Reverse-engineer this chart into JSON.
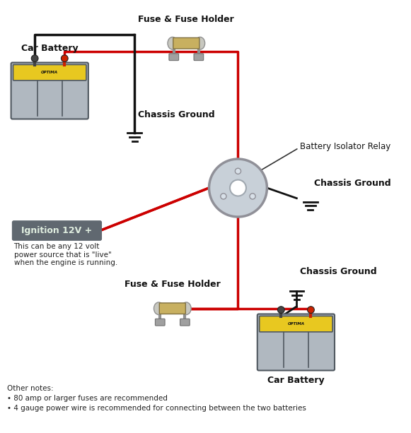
{
  "bg_color": "#ffffff",
  "title": "",
  "notes_text": "Other notes:\n• 80 amp or larger fuses are recommended\n• 4 gauge power wire is recommended for connecting between the two batteries",
  "labels": {
    "car_battery_top": "Car Battery",
    "car_battery_bottom": "Car Battery",
    "fuse_top": "Fuse & Fuse Holder",
    "fuse_bottom": "Fuse & Fuse Holder",
    "chassis_ground_top": "Chassis Ground",
    "chassis_ground_right": "Chassis Ground",
    "chassis_ground_bottom_right": "Chassis Ground",
    "relay": "Battery Isolator Relay",
    "ignition": "Ignition 12V +",
    "ignition_sub": "This can be any 12 volt\npower source that is \"live\"\nwhen the engine is running."
  },
  "colors": {
    "red_wire": "#cc0000",
    "black_wire": "#111111",
    "battery_yellow": "#e8c820",
    "battery_body": "#b0b8c0",
    "battery_dark": "#505860",
    "relay_body": "#c0c8d0",
    "fuse_body": "#c8b870",
    "fuse_metal": "#d0d0d0",
    "ground_color": "#111111",
    "ignition_bg": "#606870",
    "ignition_text": "#e0e8e0",
    "label_color": "#111111"
  }
}
